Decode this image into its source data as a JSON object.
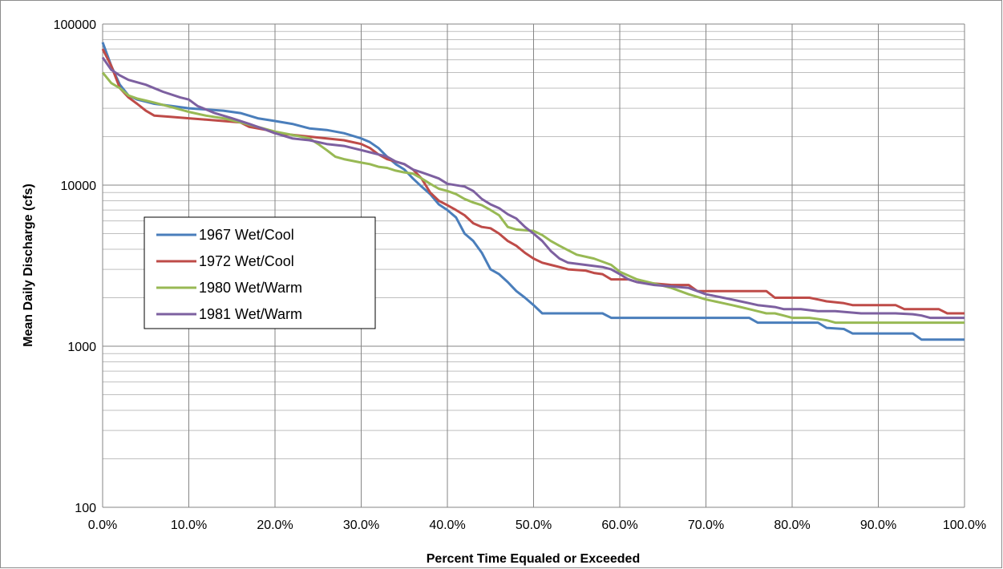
{
  "chart_data": {
    "type": "line",
    "title": "",
    "xlabel": "Percent Time Equaled or Exceeded",
    "ylabel": "Mean Daily Discharge (cfs)",
    "xscale": "linear",
    "yscale": "log",
    "xlim": [
      0,
      100
    ],
    "ylim": [
      100,
      100000
    ],
    "x_ticks": [
      0,
      10,
      20,
      30,
      40,
      50,
      60,
      70,
      80,
      90,
      100
    ],
    "x_tick_labels": [
      "0.0%",
      "10.0%",
      "20.0%",
      "30.0%",
      "40.0%",
      "50.0%",
      "60.0%",
      "70.0%",
      "80.0%",
      "90.0%",
      "100.0%"
    ],
    "y_ticks": [
      100,
      1000,
      10000,
      100000
    ],
    "y_tick_labels": [
      "100",
      "1000",
      "10000",
      "100000"
    ],
    "grid": "major and minor horizontal, major vertical",
    "legend_position": "left-center",
    "series": [
      {
        "name": "1967 Wet/Cool",
        "color": "#4a7ebb",
        "points": [
          [
            0,
            77000
          ],
          [
            1,
            55000
          ],
          [
            2,
            42000
          ],
          [
            3,
            36000
          ],
          [
            4,
            34000
          ],
          [
            5,
            33000
          ],
          [
            6,
            32000
          ],
          [
            8,
            31000
          ],
          [
            10,
            30000
          ],
          [
            12,
            29500
          ],
          [
            14,
            29000
          ],
          [
            16,
            28000
          ],
          [
            18,
            26000
          ],
          [
            20,
            25000
          ],
          [
            22,
            24000
          ],
          [
            24,
            22500
          ],
          [
            26,
            22000
          ],
          [
            28,
            21000
          ],
          [
            30,
            19500
          ],
          [
            31,
            18500
          ],
          [
            32,
            17000
          ],
          [
            33,
            15000
          ],
          [
            34,
            13500
          ],
          [
            35,
            12500
          ],
          [
            36,
            11000
          ],
          [
            37,
            9800
          ],
          [
            38,
            8800
          ],
          [
            39,
            7600
          ],
          [
            40,
            7000
          ],
          [
            41,
            6300
          ],
          [
            42,
            5000
          ],
          [
            43,
            4500
          ],
          [
            44,
            3800
          ],
          [
            45,
            3000
          ],
          [
            46,
            2800
          ],
          [
            47,
            2500
          ],
          [
            48,
            2200
          ],
          [
            49,
            2000
          ],
          [
            50,
            1800
          ],
          [
            51,
            1600
          ],
          [
            55,
            1600
          ],
          [
            58,
            1600
          ],
          [
            59,
            1500
          ],
          [
            65,
            1500
          ],
          [
            70,
            1500
          ],
          [
            75,
            1500
          ],
          [
            76,
            1400
          ],
          [
            80,
            1400
          ],
          [
            83,
            1400
          ],
          [
            84,
            1300
          ],
          [
            86,
            1280
          ],
          [
            87,
            1200
          ],
          [
            90,
            1200
          ],
          [
            94,
            1200
          ],
          [
            95,
            1100
          ],
          [
            100,
            1100
          ]
        ]
      },
      {
        "name": "1972 Wet/Cool",
        "color": "#be4b48",
        "points": [
          [
            0,
            70000
          ],
          [
            1,
            55000
          ],
          [
            2,
            40000
          ],
          [
            3,
            35000
          ],
          [
            4,
            32000
          ],
          [
            5,
            29000
          ],
          [
            6,
            27000
          ],
          [
            8,
            26500
          ],
          [
            10,
            26000
          ],
          [
            12,
            25500
          ],
          [
            14,
            25000
          ],
          [
            16,
            24500
          ],
          [
            17,
            23000
          ],
          [
            19,
            22000
          ],
          [
            20,
            21000
          ],
          [
            22,
            20500
          ],
          [
            24,
            20000
          ],
          [
            26,
            19500
          ],
          [
            28,
            19000
          ],
          [
            30,
            18000
          ],
          [
            31,
            17000
          ],
          [
            32,
            15500
          ],
          [
            33,
            14500
          ],
          [
            35,
            13500
          ],
          [
            36,
            12500
          ],
          [
            37,
            11000
          ],
          [
            38,
            9000
          ],
          [
            39,
            8000
          ],
          [
            40,
            7500
          ],
          [
            41,
            7000
          ],
          [
            42,
            6500
          ],
          [
            43,
            5800
          ],
          [
            44,
            5500
          ],
          [
            45,
            5400
          ],
          [
            46,
            5000
          ],
          [
            47,
            4500
          ],
          [
            48,
            4200
          ],
          [
            49,
            3800
          ],
          [
            50,
            3500
          ],
          [
            51,
            3300
          ],
          [
            52,
            3200
          ],
          [
            53,
            3100
          ],
          [
            54,
            3000
          ],
          [
            56,
            2950
          ],
          [
            57,
            2850
          ],
          [
            58,
            2800
          ],
          [
            59,
            2600
          ],
          [
            61,
            2600
          ],
          [
            62,
            2500
          ],
          [
            64,
            2450
          ],
          [
            66,
            2400
          ],
          [
            68,
            2400
          ],
          [
            69,
            2200
          ],
          [
            72,
            2200
          ],
          [
            75,
            2200
          ],
          [
            77,
            2200
          ],
          [
            78,
            2000
          ],
          [
            80,
            2000
          ],
          [
            82,
            2000
          ],
          [
            83,
            1950
          ],
          [
            84,
            1900
          ],
          [
            86,
            1850
          ],
          [
            87,
            1800
          ],
          [
            90,
            1800
          ],
          [
            92,
            1800
          ],
          [
            93,
            1700
          ],
          [
            95,
            1700
          ],
          [
            97,
            1700
          ],
          [
            98,
            1600
          ],
          [
            100,
            1600
          ]
        ]
      },
      {
        "name": "1980 Wet/Warm",
        "color": "#98b954",
        "points": [
          [
            0,
            50000
          ],
          [
            1,
            43000
          ],
          [
            2,
            40000
          ],
          [
            3,
            36000
          ],
          [
            4,
            34500
          ],
          [
            5,
            33500
          ],
          [
            6,
            32500
          ],
          [
            8,
            30500
          ],
          [
            10,
            28500
          ],
          [
            12,
            27000
          ],
          [
            14,
            26000
          ],
          [
            16,
            24500
          ],
          [
            18,
            23000
          ],
          [
            20,
            21500
          ],
          [
            22,
            20500
          ],
          [
            24,
            19500
          ],
          [
            25,
            18000
          ],
          [
            26,
            16500
          ],
          [
            27,
            15000
          ],
          [
            28,
            14500
          ],
          [
            30,
            13800
          ],
          [
            31,
            13500
          ],
          [
            32,
            13000
          ],
          [
            33,
            12800
          ],
          [
            34,
            12300
          ],
          [
            35,
            12000
          ],
          [
            36,
            11800
          ],
          [
            37,
            11000
          ],
          [
            38,
            10200
          ],
          [
            39,
            9500
          ],
          [
            40,
            9200
          ],
          [
            41,
            8800
          ],
          [
            42,
            8200
          ],
          [
            43,
            7800
          ],
          [
            44,
            7500
          ],
          [
            45,
            7000
          ],
          [
            46,
            6500
          ],
          [
            47,
            5500
          ],
          [
            48,
            5300
          ],
          [
            50,
            5200
          ],
          [
            51,
            4900
          ],
          [
            52,
            4500
          ],
          [
            53,
            4200
          ],
          [
            55,
            3700
          ],
          [
            57,
            3500
          ],
          [
            59,
            3200
          ],
          [
            60,
            2900
          ],
          [
            62,
            2600
          ],
          [
            64,
            2450
          ],
          [
            66,
            2300
          ],
          [
            68,
            2100
          ],
          [
            70,
            1950
          ],
          [
            71,
            1900
          ],
          [
            72,
            1850
          ],
          [
            73,
            1800
          ],
          [
            74,
            1750
          ],
          [
            75,
            1700
          ],
          [
            76,
            1650
          ],
          [
            77,
            1600
          ],
          [
            78,
            1600
          ],
          [
            79,
            1550
          ],
          [
            80,
            1500
          ],
          [
            82,
            1500
          ],
          [
            84,
            1450
          ],
          [
            85,
            1400
          ],
          [
            90,
            1400
          ],
          [
            95,
            1400
          ],
          [
            100,
            1400
          ]
        ]
      },
      {
        "name": "1981 Wet/Warm",
        "color": "#7d60a0",
        "points": [
          [
            0,
            62000
          ],
          [
            1,
            52000
          ],
          [
            2,
            48000
          ],
          [
            3,
            45000
          ],
          [
            5,
            42000
          ],
          [
            7,
            38000
          ],
          [
            9,
            35000
          ],
          [
            10,
            34000
          ],
          [
            11,
            31000
          ],
          [
            13,
            28000
          ],
          [
            15,
            26000
          ],
          [
            17,
            24000
          ],
          [
            19,
            22000
          ],
          [
            20,
            21000
          ],
          [
            22,
            19500
          ],
          [
            24,
            19000
          ],
          [
            26,
            18000
          ],
          [
            28,
            17500
          ],
          [
            30,
            16500
          ],
          [
            31,
            16000
          ],
          [
            32,
            15500
          ],
          [
            33,
            15000
          ],
          [
            34,
            14000
          ],
          [
            35,
            13500
          ],
          [
            36,
            12500
          ],
          [
            37,
            12000
          ],
          [
            38,
            11500
          ],
          [
            39,
            11000
          ],
          [
            40,
            10200
          ],
          [
            42,
            9800
          ],
          [
            43,
            9200
          ],
          [
            44,
            8200
          ],
          [
            45,
            7600
          ],
          [
            46,
            7200
          ],
          [
            47,
            6600
          ],
          [
            48,
            6200
          ],
          [
            49,
            5500
          ],
          [
            50,
            5000
          ],
          [
            51,
            4500
          ],
          [
            52,
            3900
          ],
          [
            53,
            3500
          ],
          [
            54,
            3300
          ],
          [
            56,
            3200
          ],
          [
            58,
            3100
          ],
          [
            59,
            3000
          ],
          [
            60,
            2800
          ],
          [
            61,
            2600
          ],
          [
            62,
            2500
          ],
          [
            64,
            2400
          ],
          [
            66,
            2350
          ],
          [
            68,
            2300
          ],
          [
            69,
            2200
          ],
          [
            70,
            2100
          ],
          [
            71,
            2050
          ],
          [
            72,
            2000
          ],
          [
            73,
            1950
          ],
          [
            74,
            1900
          ],
          [
            75,
            1850
          ],
          [
            76,
            1800
          ],
          [
            78,
            1750
          ],
          [
            79,
            1700
          ],
          [
            81,
            1700
          ],
          [
            83,
            1650
          ],
          [
            85,
            1650
          ],
          [
            88,
            1600
          ],
          [
            90,
            1600
          ],
          [
            92,
            1600
          ],
          [
            94,
            1580
          ],
          [
            95,
            1550
          ],
          [
            96,
            1500
          ],
          [
            100,
            1500
          ]
        ]
      }
    ]
  }
}
